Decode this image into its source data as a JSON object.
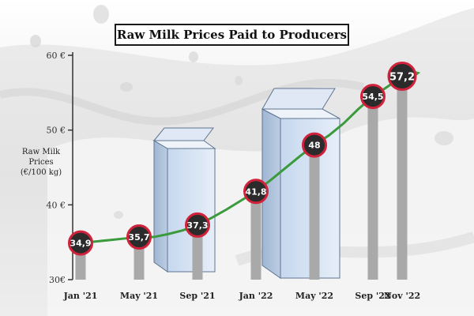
{
  "chart_data": {
    "type": "bar",
    "title": "Raw Milk Prices Paid to Producers",
    "ylabel_lines": [
      "Raw Milk",
      "Prices",
      "(€/100 kg)"
    ],
    "ylim": [
      30,
      60
    ],
    "yticks": [
      30,
      40,
      50,
      60
    ],
    "ytick_labels": [
      "30€",
      "40 €",
      "50 €",
      "60 €"
    ],
    "categories": [
      "Jan '21",
      "May '21",
      "Sep '21",
      "Jan '22",
      "May '22",
      "Sep '22",
      "Nov '22"
    ],
    "x": [
      0,
      4,
      8,
      12,
      16,
      20,
      22
    ],
    "values": [
      34.9,
      35.7,
      37.3,
      41.8,
      48,
      54.5,
      57.2
    ],
    "value_labels": [
      "34,9",
      "35,7",
      "37,3",
      "41,8",
      "48",
      "54,5",
      "57,2"
    ],
    "line": {
      "x": [
        0,
        1,
        2,
        3,
        4,
        5,
        6,
        7,
        8,
        9,
        10,
        11,
        12,
        13,
        14,
        15,
        16,
        17,
        18,
        19,
        20,
        21,
        22,
        23
      ],
      "values": [
        34.9,
        35.1,
        35.3,
        35.5,
        35.7,
        35.7,
        36.1,
        36.6,
        37.3,
        38.3,
        39.4,
        40.6,
        41.8,
        43.3,
        44.9,
        46.5,
        48,
        49.3,
        50.9,
        52.8,
        54.5,
        55.8,
        57.2,
        57.6
      ]
    },
    "colors": {
      "bar": "#a9a9a9",
      "line": "#3a9a3c",
      "marker_fill": "#2b2b2b",
      "marker_ring": "#d0223a"
    },
    "legend": "none",
    "grid": false
  }
}
